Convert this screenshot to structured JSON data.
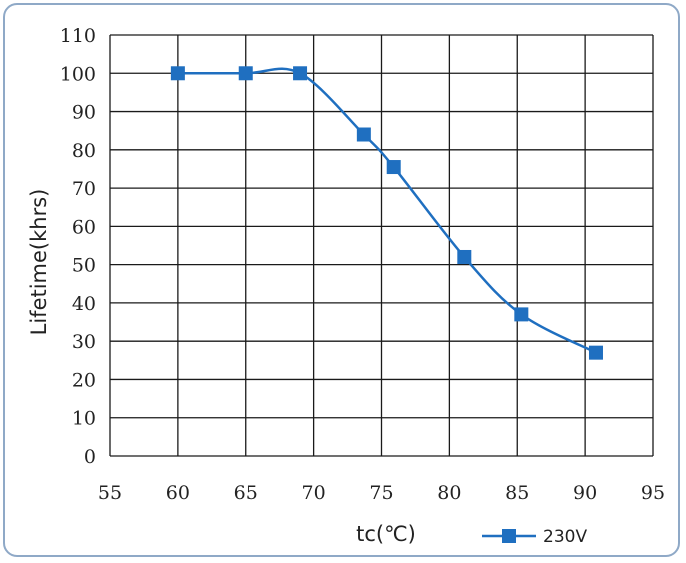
{
  "chart_data": {
    "type": "line",
    "xlabel": "tc(℃)",
    "ylabel": "Lifetime(khrs)",
    "xlim": [
      55,
      95
    ],
    "ylim": [
      0,
      110
    ],
    "xticks": [
      "55",
      "60",
      "65",
      "70",
      "75",
      "80",
      "85",
      "90",
      "95"
    ],
    "yticks": [
      "0",
      "10",
      "20",
      "30",
      "40",
      "50",
      "60",
      "70",
      "80",
      "90",
      "100",
      "110"
    ],
    "grid": true,
    "legend": "bottom-right",
    "series": [
      {
        "name": "230V",
        "color": "#1f6fc0",
        "marker": "square",
        "x": [
          60,
          65,
          69,
          73.7,
          75.9,
          81.1,
          85.3,
          90.8
        ],
        "y": [
          100,
          100,
          100,
          84,
          75.5,
          52,
          37,
          27
        ]
      }
    ]
  }
}
